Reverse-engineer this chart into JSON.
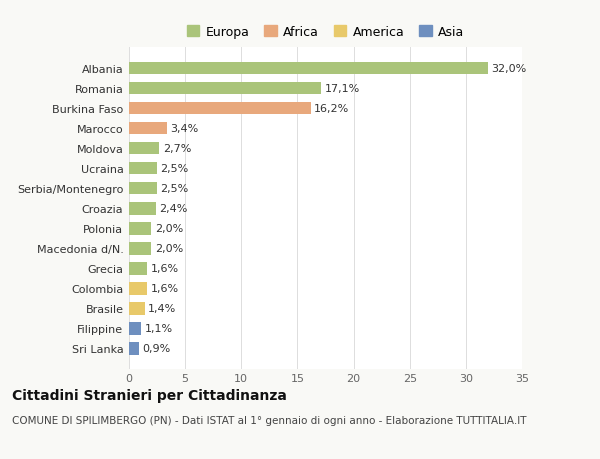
{
  "categories": [
    "Sri Lanka",
    "Filippine",
    "Brasile",
    "Colombia",
    "Grecia",
    "Macedonia d/N.",
    "Polonia",
    "Croazia",
    "Serbia/Montenegro",
    "Ucraina",
    "Moldova",
    "Marocco",
    "Burkina Faso",
    "Romania",
    "Albania"
  ],
  "values": [
    0.9,
    1.1,
    1.4,
    1.6,
    1.6,
    2.0,
    2.0,
    2.4,
    2.5,
    2.5,
    2.7,
    3.4,
    16.2,
    17.1,
    32.0
  ],
  "labels": [
    "0,9%",
    "1,1%",
    "1,4%",
    "1,6%",
    "1,6%",
    "2,0%",
    "2,0%",
    "2,4%",
    "2,5%",
    "2,5%",
    "2,7%",
    "3,4%",
    "16,2%",
    "17,1%",
    "32,0%"
  ],
  "colors": [
    "#6e8fbf",
    "#6e8fbf",
    "#e8c96a",
    "#e8c96a",
    "#aac47a",
    "#aac47a",
    "#aac47a",
    "#aac47a",
    "#aac47a",
    "#aac47a",
    "#aac47a",
    "#e8a87c",
    "#e8a87c",
    "#aac47a",
    "#aac47a"
  ],
  "legend_labels": [
    "Europa",
    "Africa",
    "America",
    "Asia"
  ],
  "legend_colors": [
    "#aac47a",
    "#e8a87c",
    "#e8c96a",
    "#6e8fbf"
  ],
  "title": "Cittadini Stranieri per Cittadinanza",
  "subtitle": "COMUNE DI SPILIMBERGO (PN) - Dati ISTAT al 1° gennaio di ogni anno - Elaborazione TUTTITALIA.IT",
  "xlim": [
    0,
    35
  ],
  "xticks": [
    0,
    5,
    10,
    15,
    20,
    25,
    30,
    35
  ],
  "bg_color": "#f9f9f6",
  "plot_bg": "#ffffff",
  "bar_height": 0.62,
  "title_fontsize": 10,
  "subtitle_fontsize": 7.5,
  "label_fontsize": 8,
  "tick_fontsize": 8,
  "legend_fontsize": 9
}
